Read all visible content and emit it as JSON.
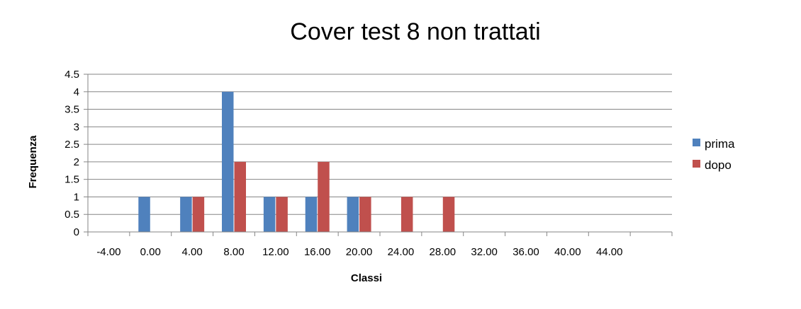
{
  "chart_data": {
    "type": "bar",
    "title": "Cover test 8 non trattati",
    "xlabel": "Classi",
    "ylabel": "Frequenza",
    "categories": [
      "-4.00",
      "0.00",
      "4.00",
      "8.00",
      "12.00",
      "16.00",
      "20.00",
      "24.00",
      "28.00",
      "32.00",
      "36.00",
      "40.00",
      "44.00"
    ],
    "series": [
      {
        "name": "prima",
        "color": "#4F81BD",
        "values": [
          0,
          1,
          1,
          4,
          1,
          1,
          1,
          0,
          0,
          0,
          0,
          0,
          0
        ]
      },
      {
        "name": "dopo",
        "color": "#C0504D",
        "values": [
          0,
          0,
          1,
          2,
          1,
          2,
          1,
          1,
          1,
          0,
          0,
          0,
          0
        ]
      }
    ],
    "ylim": [
      0,
      4.5
    ],
    "y_ticks": [
      "0",
      "0.5",
      "1",
      "1.5",
      "2",
      "2.5",
      "3",
      "3.5",
      "4",
      "4.5"
    ],
    "grid": true,
    "legend_position": "right"
  }
}
